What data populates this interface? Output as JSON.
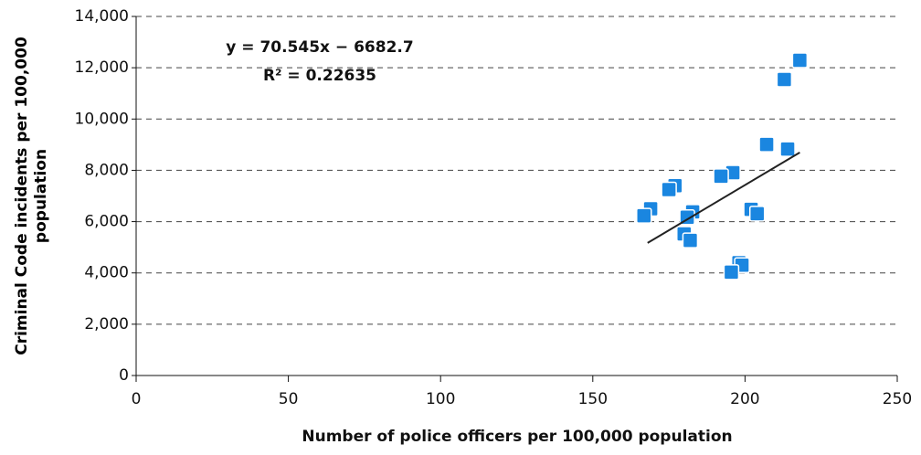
{
  "chart_data": {
    "type": "scatter",
    "x_label": "Number of police officers per 100,000 population",
    "y_label": "Criminal Code incidents per 100,000 population",
    "equation": "y = 70.545x − 6682.7",
    "r_squared": "R² = 0.22635",
    "color": "#1a86e0",
    "x": [
      218,
      212.9,
      207.1,
      214,
      196,
      192.1,
      177,
      175,
      169,
      166.8,
      182.8,
      181,
      180,
      182,
      202,
      204,
      198,
      199,
      195.5
    ],
    "values": [
      12290,
      11540,
      9010,
      8830,
      7910,
      7770,
      7400,
      7250,
      6500,
      6230,
      6380,
      6170,
      5520,
      5270,
      6480,
      6310,
      4400,
      4300,
      4030
    ],
    "trendline": {
      "slope": 70.545,
      "intercept": -6682.7,
      "x_range": [
        168,
        218
      ]
    },
    "xlim": [
      0,
      250
    ],
    "xticks": [
      0,
      50,
      100,
      150,
      200,
      250
    ],
    "ylim": [
      0,
      14000
    ],
    "yticks": [
      0,
      {
        "value": 2000,
        "label": "2,000"
      },
      {
        "value": 4000,
        "label": "4,000"
      },
      {
        "value": 6000,
        "label": "6,000"
      },
      {
        "value": 8000,
        "label": "8,000"
      },
      {
        "value": 10000,
        "label": "10,000"
      },
      {
        "value": 12000,
        "label": "12,000"
      },
      {
        "value": 14000,
        "label": "14,000"
      }
    ],
    "grid": true
  }
}
